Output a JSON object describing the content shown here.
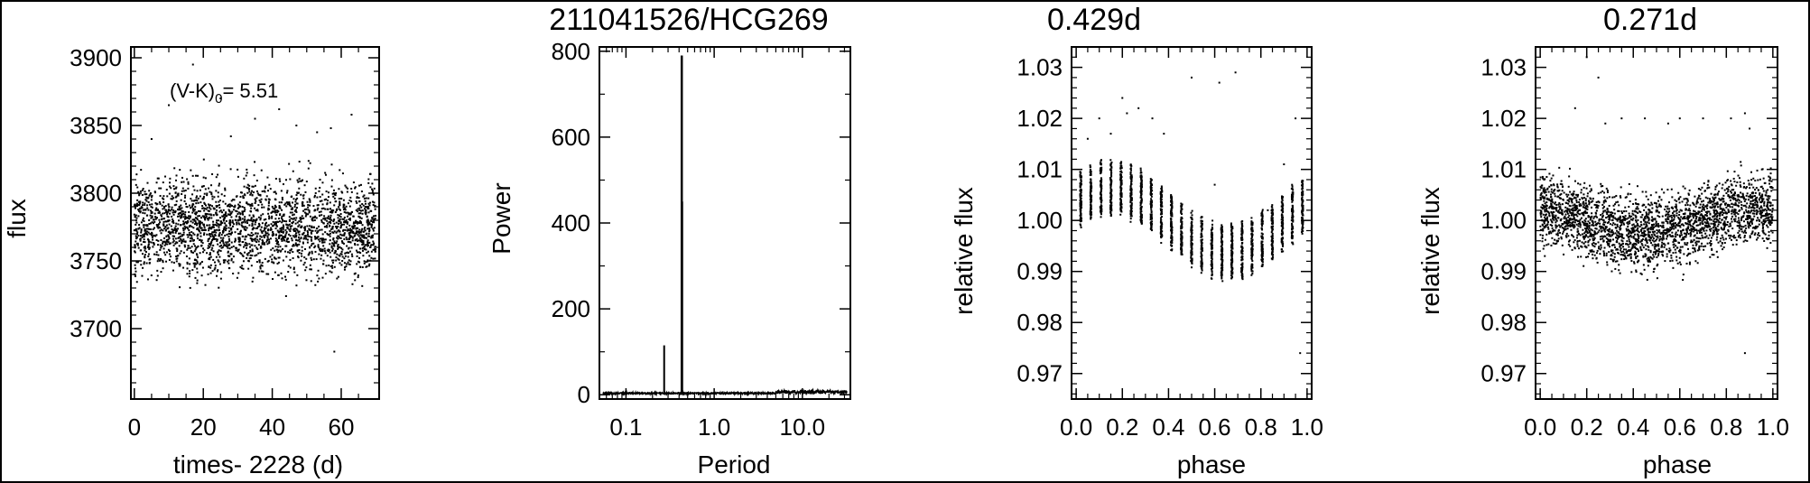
{
  "chart_data": [
    {
      "type": "scatter",
      "title": "",
      "xlabel": "times- 2228 (d)",
      "ylabel": "flux",
      "xlim": [
        -1,
        71
      ],
      "ylim": [
        3648,
        3908
      ],
      "xticks": [
        0,
        20,
        40,
        60
      ],
      "yticks": [
        3700,
        3750,
        3800,
        3850,
        3900
      ],
      "annotation": {
        "main": "(V-K)",
        "sub": "0",
        "value": "= 5.51"
      },
      "series": [
        {
          "description_of_cloud": "dense noisy light curve, mean flux ~3775, scatter ~3735-3815, sparse outliers up to ~3895 and one low point at ~3683 near t=58",
          "x_range": [
            0,
            70
          ],
          "mean_y": 3775,
          "spread_y": 20,
          "outliers": [
            [
              5,
              3840
            ],
            [
              10,
              3865
            ],
            [
              17,
              3895
            ],
            [
              25,
              3870
            ],
            [
              35,
              3855
            ],
            [
              42,
              3862
            ],
            [
              47,
              3850
            ],
            [
              57,
              3848
            ],
            [
              63,
              3858
            ],
            [
              28,
              3842
            ],
            [
              53,
              3845
            ],
            [
              58,
              3683
            ],
            [
              44,
              3724
            ]
          ]
        }
      ]
    },
    {
      "type": "line",
      "title": "211041526/HCG269",
      "xlabel": "Period",
      "ylabel": "Power",
      "xscale": "log",
      "xlim": [
        0.05,
        35
      ],
      "ylim": [
        -10,
        810
      ],
      "xticks": [
        0.1,
        1.0,
        10.0
      ],
      "xtick_labels": [
        "0.1",
        "1.0",
        "10.0"
      ],
      "yticks": [
        0,
        200,
        400,
        600,
        800
      ],
      "peaks": [
        {
          "period": 0.271,
          "power": 115
        },
        {
          "period": 0.429,
          "power": 790
        },
        {
          "period": 0.432,
          "power": 450
        }
      ],
      "baseline_power": 2
    },
    {
      "type": "scatter",
      "title": "0.429d",
      "xlabel": "phase",
      "ylabel": "relative flux",
      "xlim": [
        -0.02,
        1.02
      ],
      "ylim": [
        0.965,
        1.034
      ],
      "xticks": [
        0.0,
        0.2,
        0.4,
        0.6,
        0.8,
        1.0
      ],
      "yticks": [
        0.97,
        0.98,
        0.99,
        1.0,
        1.01,
        1.02,
        1.03
      ],
      "ytick_labels": [
        "0.97",
        "0.98",
        "0.99",
        "1.00",
        "1.01",
        "1.02",
        "1.03"
      ],
      "phase_columns": 23,
      "amplitude": 0.006,
      "mean": 1.0,
      "column_spread": 0.006,
      "outliers": [
        [
          0.05,
          1.016
        ],
        [
          0.1,
          1.02
        ],
        [
          0.15,
          1.017
        ],
        [
          0.2,
          1.024
        ],
        [
          0.22,
          1.021
        ],
        [
          0.27,
          1.022
        ],
        [
          0.33,
          1.02
        ],
        [
          0.38,
          1.017
        ],
        [
          0.5,
          1.028
        ],
        [
          0.62,
          1.027
        ],
        [
          0.69,
          1.029
        ],
        [
          0.83,
          1.002
        ],
        [
          0.9,
          1.011
        ],
        [
          0.95,
          1.02
        ],
        [
          0.97,
          0.974
        ],
        [
          0.6,
          1.007
        ]
      ]
    },
    {
      "type": "scatter",
      "title": "0.271d",
      "xlabel": "phase",
      "ylabel": "relative flux",
      "xlim": [
        -0.02,
        1.02
      ],
      "ylim": [
        0.965,
        1.034
      ],
      "xticks": [
        0.0,
        0.2,
        0.4,
        0.6,
        0.8,
        1.0
      ],
      "xtick_labels": [
        "0.0",
        "0.2",
        "0.4",
        "0.6",
        "0.8",
        "1.0"
      ],
      "yticks": [
        0.97,
        0.98,
        0.99,
        1.0,
        1.01,
        1.02,
        1.03
      ],
      "ytick_labels": [
        "0.97",
        "0.98",
        "0.99",
        "1.00",
        "1.01",
        "1.02",
        "1.03"
      ],
      "amplitude": 0.0025,
      "mean": 1.0,
      "spread_y": 0.004,
      "outliers": [
        [
          0.15,
          1.022
        ],
        [
          0.2,
          1.032
        ],
        [
          0.25,
          1.028
        ],
        [
          0.28,
          1.019
        ],
        [
          0.35,
          1.02
        ],
        [
          0.45,
          1.02
        ],
        [
          0.55,
          1.019
        ],
        [
          0.6,
          1.02
        ],
        [
          0.7,
          1.02
        ],
        [
          0.82,
          1.02
        ],
        [
          0.88,
          1.021
        ],
        [
          0.9,
          1.018
        ],
        [
          0.88,
          0.974
        ]
      ]
    }
  ]
}
